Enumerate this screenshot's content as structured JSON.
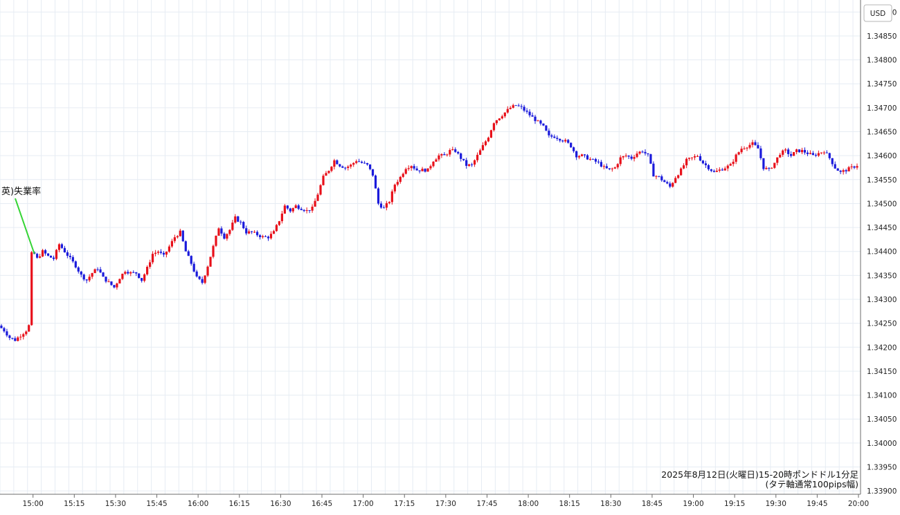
{
  "chart_data": {
    "type": "candlestick",
    "currency": "USD",
    "y_ticks": [
      "1.34900",
      "1.34850",
      "1.34800",
      "1.34750",
      "1.34700",
      "1.34650",
      "1.34600",
      "1.34550",
      "1.34500",
      "1.34450",
      "1.34400",
      "1.34350",
      "1.34300",
      "1.34250",
      "1.34200",
      "1.34150",
      "1.34100",
      "1.34050",
      "1.34000",
      "1.33950",
      "1.33900"
    ],
    "ylim": [
      1.33893,
      1.34925
    ],
    "x_ticks": [
      "15:00",
      "15:15",
      "15:30",
      "15:45",
      "16:00",
      "16:15",
      "16:30",
      "16:45",
      "17:00",
      "17:15",
      "17:30",
      "17:45",
      "18:00",
      "18:15",
      "18:30",
      "18:45",
      "19:00",
      "19:15",
      "19:30",
      "19:45",
      "20:00"
    ],
    "xlim": [
      "14:48",
      "20:00"
    ],
    "grid": true,
    "colors": {
      "up": "#e8101a",
      "down": "#1a1adb",
      "event_line": "#35d435"
    },
    "event": {
      "label": "英)失業率",
      "time": "15:00",
      "price": 1.34395
    },
    "note_line1": "2025年8月12日(火曜日)15-20時ポンドドル1分足",
    "note_line2": "(タテ軸通常100pips幅)",
    "path_points": [
      [
        "14:48",
        1.34245
      ],
      [
        "14:50",
        1.34235
      ],
      [
        "14:52",
        1.3422
      ],
      [
        "14:54",
        1.34215
      ],
      [
        "14:56",
        1.34225
      ],
      [
        "14:58",
        1.34235
      ],
      [
        "14:59",
        1.34245
      ],
      [
        "15:00",
        1.34395
      ],
      [
        "15:02",
        1.34385
      ],
      [
        "15:04",
        1.344
      ],
      [
        "15:06",
        1.3439
      ],
      [
        "15:08",
        1.34385
      ],
      [
        "15:10",
        1.34415
      ],
      [
        "15:12",
        1.344
      ],
      [
        "15:14",
        1.34385
      ],
      [
        "15:16",
        1.3437
      ],
      [
        "15:18",
        1.3435
      ],
      [
        "15:20",
        1.3434
      ],
      [
        "15:22",
        1.34355
      ],
      [
        "15:24",
        1.34365
      ],
      [
        "15:26",
        1.34345
      ],
      [
        "15:28",
        1.34335
      ],
      [
        "15:30",
        1.34325
      ],
      [
        "15:32",
        1.34345
      ],
      [
        "15:34",
        1.3436
      ],
      [
        "15:36",
        1.34355
      ],
      [
        "15:38",
        1.34355
      ],
      [
        "15:40",
        1.3434
      ],
      [
        "15:42",
        1.34365
      ],
      [
        "15:44",
        1.34395
      ],
      [
        "15:46",
        1.344
      ],
      [
        "15:48",
        1.3439
      ],
      [
        "15:50",
        1.3441
      ],
      [
        "15:52",
        1.3443
      ],
      [
        "15:54",
        1.3444
      ],
      [
        "15:56",
        1.344
      ],
      [
        "15:58",
        1.34375
      ],
      [
        "16:00",
        1.34345
      ],
      [
        "16:02",
        1.34335
      ],
      [
        "16:04",
        1.3437
      ],
      [
        "16:06",
        1.3441
      ],
      [
        "16:08",
        1.3445
      ],
      [
        "16:10",
        1.3443
      ],
      [
        "16:12",
        1.34445
      ],
      [
        "16:14",
        1.3447
      ],
      [
        "16:16",
        1.3446
      ],
      [
        "16:18",
        1.3444
      ],
      [
        "16:20",
        1.3444
      ],
      [
        "16:22",
        1.34435
      ],
      [
        "16:24",
        1.3443
      ],
      [
        "16:26",
        1.3443
      ],
      [
        "16:28",
        1.3444
      ],
      [
        "16:30",
        1.34465
      ],
      [
        "16:32",
        1.34495
      ],
      [
        "16:34",
        1.34485
      ],
      [
        "16:36",
        1.34495
      ],
      [
        "16:38",
        1.3449
      ],
      [
        "16:40",
        1.34485
      ],
      [
        "16:42",
        1.3449
      ],
      [
        "16:44",
        1.3452
      ],
      [
        "16:46",
        1.34555
      ],
      [
        "16:48",
        1.3457
      ],
      [
        "16:50",
        1.3459
      ],
      [
        "16:52",
        1.3458
      ],
      [
        "16:54",
        1.34575
      ],
      [
        "16:56",
        1.3458
      ],
      [
        "16:58",
        1.3459
      ],
      [
        "17:00",
        1.34585
      ],
      [
        "17:02",
        1.3458
      ],
      [
        "17:04",
        1.3456
      ],
      [
        "17:06",
        1.345
      ],
      [
        "17:08",
        1.3449
      ],
      [
        "17:10",
        1.34505
      ],
      [
        "17:12",
        1.3454
      ],
      [
        "17:14",
        1.34555
      ],
      [
        "17:16",
        1.34575
      ],
      [
        "17:18",
        1.3458
      ],
      [
        "17:20",
        1.3457
      ],
      [
        "17:22",
        1.3457
      ],
      [
        "17:24",
        1.3457
      ],
      [
        "17:26",
        1.3459
      ],
      [
        "17:28",
        1.346
      ],
      [
        "17:30",
        1.346
      ],
      [
        "17:32",
        1.3461
      ],
      [
        "17:34",
        1.3461
      ],
      [
        "17:36",
        1.34595
      ],
      [
        "17:38",
        1.3458
      ],
      [
        "17:40",
        1.3458
      ],
      [
        "17:42",
        1.346
      ],
      [
        "17:44",
        1.3462
      ],
      [
        "17:46",
        1.3464
      ],
      [
        "17:48",
        1.3467
      ],
      [
        "17:50",
        1.3468
      ],
      [
        "17:52",
        1.3469
      ],
      [
        "17:54",
        1.347
      ],
      [
        "17:56",
        1.34705
      ],
      [
        "17:58",
        1.347
      ],
      [
        "18:00",
        1.3469
      ],
      [
        "18:02",
        1.3468
      ],
      [
        "18:04",
        1.3467
      ],
      [
        "18:06",
        1.3466
      ],
      [
        "18:08",
        1.3464
      ],
      [
        "18:10",
        1.3464
      ],
      [
        "18:12",
        1.34635
      ],
      [
        "18:14",
        1.3463
      ],
      [
        "18:16",
        1.3462
      ],
      [
        "18:18",
        1.346
      ],
      [
        "18:20",
        1.346
      ],
      [
        "18:22",
        1.34595
      ],
      [
        "18:24",
        1.3459
      ],
      [
        "18:26",
        1.34585
      ],
      [
        "18:28",
        1.34575
      ],
      [
        "18:30",
        1.3457
      ],
      [
        "18:32",
        1.34575
      ],
      [
        "18:34",
        1.34595
      ],
      [
        "18:36",
        1.346
      ],
      [
        "18:38",
        1.34595
      ],
      [
        "18:40",
        1.34605
      ],
      [
        "18:42",
        1.3461
      ],
      [
        "18:44",
        1.346
      ],
      [
        "18:46",
        1.3456
      ],
      [
        "18:48",
        1.34555
      ],
      [
        "18:50",
        1.34545
      ],
      [
        "18:52",
        1.34535
      ],
      [
        "18:54",
        1.34555
      ],
      [
        "18:56",
        1.3457
      ],
      [
        "18:58",
        1.3459
      ],
      [
        "19:00",
        1.34595
      ],
      [
        "19:02",
        1.346
      ],
      [
        "19:04",
        1.34585
      ],
      [
        "19:06",
        1.34575
      ],
      [
        "19:08",
        1.34565
      ],
      [
        "19:10",
        1.3457
      ],
      [
        "19:12",
        1.34575
      ],
      [
        "19:14",
        1.3458
      ],
      [
        "19:16",
        1.346
      ],
      [
        "19:18",
        1.34615
      ],
      [
        "19:20",
        1.3462
      ],
      [
        "19:22",
        1.34625
      ],
      [
        "19:24",
        1.34615
      ],
      [
        "19:26",
        1.34575
      ],
      [
        "19:28",
        1.3457
      ],
      [
        "19:30",
        1.34585
      ],
      [
        "19:32",
        1.34605
      ],
      [
        "19:34",
        1.3461
      ],
      [
        "19:36",
        1.346
      ],
      [
        "19:38",
        1.3461
      ],
      [
        "19:40",
        1.3461
      ],
      [
        "19:42",
        1.34605
      ],
      [
        "19:44",
        1.346
      ],
      [
        "19:46",
        1.34605
      ],
      [
        "19:48",
        1.3461
      ],
      [
        "19:50",
        1.34595
      ],
      [
        "19:52",
        1.34575
      ],
      [
        "19:54",
        1.34565
      ],
      [
        "19:56",
        1.3457
      ],
      [
        "19:58",
        1.34575
      ],
      [
        "20:00",
        1.3458
      ]
    ]
  }
}
